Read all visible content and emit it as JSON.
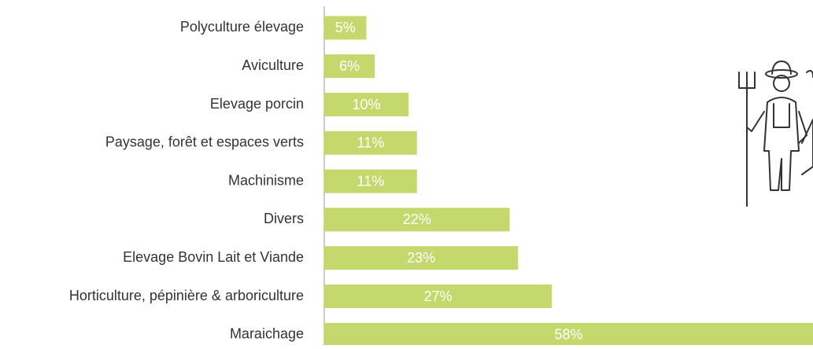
{
  "chart_data": {
    "type": "hbar",
    "categories": [
      "Polyculture élevage",
      "Aviculture",
      "Elevage porcin",
      "Paysage, forêt et espaces verts",
      "Machinisme",
      "Divers",
      "Elevage Bovin Lait et Viande",
      "Horticulture, pépinière & arboriculture",
      "Maraichage"
    ],
    "values": [
      5,
      6,
      10,
      11,
      11,
      22,
      23,
      27,
      58
    ],
    "value_labels": [
      "5%",
      "6%",
      "10%",
      "11%",
      "11%",
      "22%",
      "23%",
      "27%",
      "58%"
    ],
    "color": "#c5d86d",
    "xlim": [
      0,
      58
    ]
  }
}
